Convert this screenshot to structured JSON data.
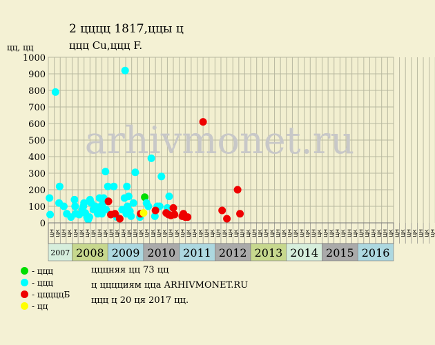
{
  "title_line1": "2 цццц 1817,ццы ц",
  "title_line2": "ццц Cu,ццц F.",
  "watermark": "arhivmonet.ru",
  "legend": [
    {
      "label": "- ццц",
      "color": "#00dd00"
    },
    {
      "label": "- ццц",
      "color": "#00ffff"
    },
    {
      "label": "- цццццБ",
      "color": "#ee0000"
    },
    {
      "label": "- цц",
      "color": "#ffff00"
    }
  ],
  "info": {
    "line1": "цццняя цц 73 цц",
    "line2": "ц цццциям цца ARHIVMONET.RU",
    "line3": "ццц ц 20 ця 2017 цц."
  },
  "chart_data": {
    "type": "scatter",
    "title": "2 цццц 1817,ццы ц",
    "subtitle": "ццц Cu,ццц F.",
    "ylabel": "цц, цц",
    "ylim": [
      0,
      1000
    ],
    "yticks": [
      0,
      100,
      200,
      300,
      400,
      500,
      600,
      700,
      800,
      900,
      1000
    ],
    "grid": true,
    "x_unit": "half-month",
    "period_labels": [
      "цн",
      "цк",
      "цн",
      "цк",
      "цн",
      "цк",
      "цн",
      "цк",
      "цн",
      "цк",
      "цн",
      "цк",
      "цн",
      "цк",
      "цн",
      "цк",
      "цн",
      "цк",
      "цн",
      "цк",
      "цн",
      "цк",
      "цн",
      "цк",
      "цн",
      "цк",
      "цн",
      "цк",
      "цн",
      "цк",
      "цн",
      "цк",
      "цн",
      "цк",
      "цн",
      "цк",
      "цн",
      "цк",
      "цн",
      "цк",
      "цн",
      "цк",
      "цн",
      "цк",
      "цн",
      "цк",
      "цн",
      "цк",
      "цн",
      "цк",
      "цн",
      "цк",
      "цн",
      "цк",
      "цн",
      "цк",
      "цн",
      "цк",
      "цн",
      "цк",
      "цн",
      "цк",
      "цн",
      "цк",
      "цн",
      "цк",
      "цн",
      "цк",
      "цн",
      "цк",
      "цн",
      "цк",
      "цн",
      "цк",
      "цн",
      "цк",
      "цн",
      "цк",
      "цн",
      "цк",
      "цн",
      "цк",
      "цн",
      "цк",
      "цн",
      "цк",
      "цн",
      "цк",
      "цн",
      "цк",
      "цн",
      "цк",
      "цн",
      "цк",
      "цн",
      "цк",
      "цн",
      "цк"
    ],
    "years": [
      {
        "label": "2007",
        "start": 0,
        "span": 4,
        "color": "#d6eedc",
        "small": true
      },
      {
        "label": "2008",
        "start": 4,
        "span": 6,
        "color": "#c7d88e"
      },
      {
        "label": "2009",
        "start": 10,
        "span": 6,
        "color": "#add8e0"
      },
      {
        "label": "2010",
        "start": 16,
        "span": 6,
        "color": "#aaaaaa"
      },
      {
        "label": "2011",
        "start": 22,
        "span": 6,
        "color": "#add8e0"
      },
      {
        "label": "2012",
        "start": 28,
        "span": 6,
        "color": "#aaaaaa"
      },
      {
        "label": "2013",
        "start": 34,
        "span": 6,
        "color": "#c7d88e"
      },
      {
        "label": "2014",
        "start": 40,
        "span": 6,
        "color": "#d6eedc"
      },
      {
        "label": "2015",
        "start": 46,
        "span": 6,
        "color": "#aaaaaa"
      },
      {
        "label": "2016",
        "start": 52,
        "span": 6,
        "color": "#add8e0"
      }
    ],
    "series": [
      {
        "name": "ццц",
        "color": "#00dd00",
        "points": [
          [
            16.2,
            155
          ]
        ]
      },
      {
        "name": "ццц",
        "color": "#00ffff",
        "points": [
          [
            0.2,
            150
          ],
          [
            0.3,
            50
          ],
          [
            1.2,
            790
          ],
          [
            1.8,
            120
          ],
          [
            1.9,
            220
          ],
          [
            2.6,
            100
          ],
          [
            3.1,
            55
          ],
          [
            3.8,
            35
          ],
          [
            4.4,
            140
          ],
          [
            4.5,
            100
          ],
          [
            4.6,
            55
          ],
          [
            5.2,
            50
          ],
          [
            5.7,
            80
          ],
          [
            5.9,
            100
          ],
          [
            6.0,
            120
          ],
          [
            6.2,
            60
          ],
          [
            6.5,
            35
          ],
          [
            6.7,
            20
          ],
          [
            6.9,
            35
          ],
          [
            7.0,
            140
          ],
          [
            7.2,
            120
          ],
          [
            7.6,
            80
          ],
          [
            7.9,
            100
          ],
          [
            8.3,
            55
          ],
          [
            8.6,
            150
          ],
          [
            8.7,
            80
          ],
          [
            8.8,
            100
          ],
          [
            9.0,
            55
          ],
          [
            9.2,
            120
          ],
          [
            9.3,
            150
          ],
          [
            9.6,
            310
          ],
          [
            9.7,
            80
          ],
          [
            10.0,
            220
          ],
          [
            11.0,
            220
          ],
          [
            11.5,
            35
          ],
          [
            12.4,
            80
          ],
          [
            12.8,
            150
          ],
          [
            12.9,
            920
          ],
          [
            13.1,
            55
          ],
          [
            13.2,
            220
          ],
          [
            13.3,
            100
          ],
          [
            13.5,
            160
          ],
          [
            13.7,
            70
          ],
          [
            13.9,
            40
          ],
          [
            14.3,
            120
          ],
          [
            14.6,
            305
          ],
          [
            15.4,
            35
          ],
          [
            16.5,
            120
          ],
          [
            16.8,
            100
          ],
          [
            17.3,
            390
          ],
          [
            17.9,
            40
          ],
          [
            18.3,
            100
          ],
          [
            18.7,
            100
          ],
          [
            19.0,
            280
          ],
          [
            20.0,
            90
          ],
          [
            20.3,
            160
          ]
        ]
      },
      {
        "name": "цццццБ",
        "color": "#ee0000",
        "points": [
          [
            10.1,
            130
          ],
          [
            10.5,
            50
          ],
          [
            11.2,
            55
          ],
          [
            12.0,
            25
          ],
          [
            15.5,
            55
          ],
          [
            18.0,
            75
          ],
          [
            19.8,
            60
          ],
          [
            20.2,
            50
          ],
          [
            20.6,
            45
          ],
          [
            21.0,
            90
          ],
          [
            21.2,
            50
          ],
          [
            22.5,
            40
          ],
          [
            22.7,
            55
          ],
          [
            23.0,
            35
          ],
          [
            23.4,
            35
          ],
          [
            26.0,
            610
          ],
          [
            29.2,
            75
          ],
          [
            30.0,
            25
          ],
          [
            31.8,
            200
          ],
          [
            32.2,
            55
          ]
        ]
      },
      {
        "name": "цц",
        "color": "#ffff00",
        "points": [
          [
            16.0,
            60
          ]
        ]
      }
    ]
  }
}
